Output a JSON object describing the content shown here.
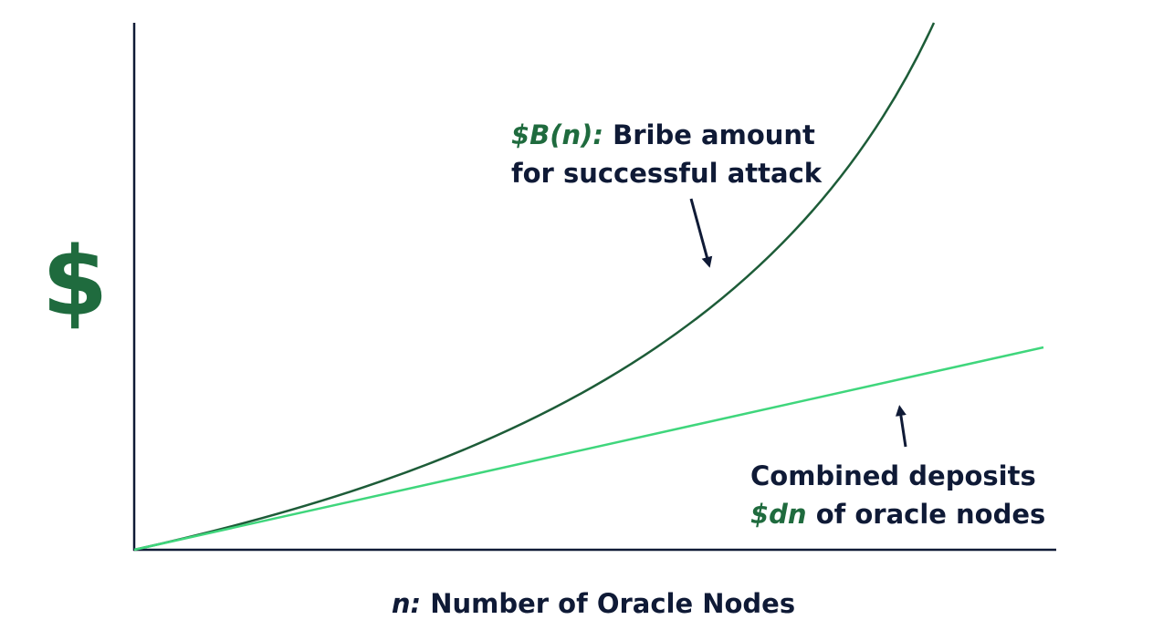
{
  "y_axis_label": "$",
  "x_axis_label": {
    "symbol": "n:",
    "text": "Number of Oracle Nodes"
  },
  "annotations": [
    {
      "symbol": "$B(n):",
      "line1": "Bribe amount",
      "line2": "for successful attack"
    },
    {
      "line1": "Combined deposits",
      "symbol": "$dn",
      "line2": "of oracle nodes"
    }
  ]
}
